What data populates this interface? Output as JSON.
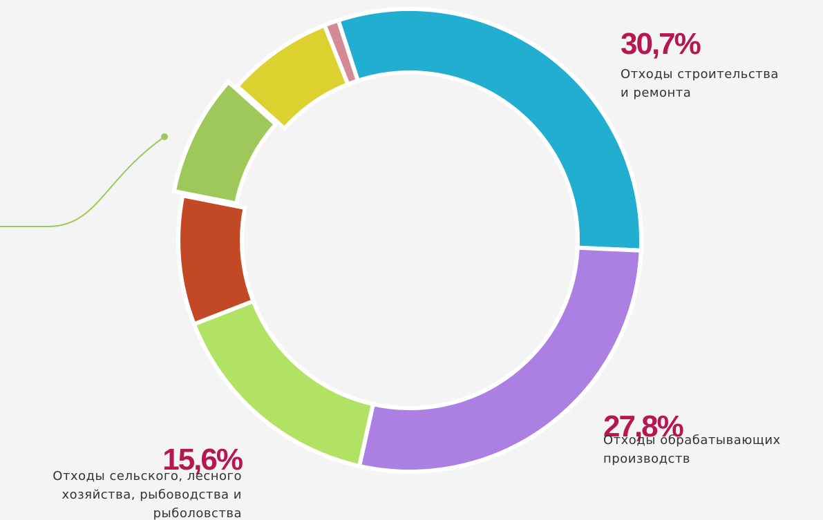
{
  "chart_data": {
    "type": "donut",
    "categories": [
      "Отходы строительства\nи ремонта",
      "Отходы обрабатывающих\nпроизводств",
      "Отходы сельского, лесного\nхозяйства, рыбоводства и\nрыболовства",
      null,
      null,
      null,
      null
    ],
    "values": [
      30.7,
      27.8,
      15.6,
      9,
      8.5,
      7.4,
      1
    ],
    "value_labels": [
      "30,7%",
      "27,8%",
      "15,6%",
      null,
      null,
      null,
      null
    ],
    "colors": [
      "#22aed1",
      "#ac80e3",
      "#b1e263",
      "#c34826",
      "#9ec95a",
      "#dcd12e",
      "#d48a95"
    ]
  }
}
